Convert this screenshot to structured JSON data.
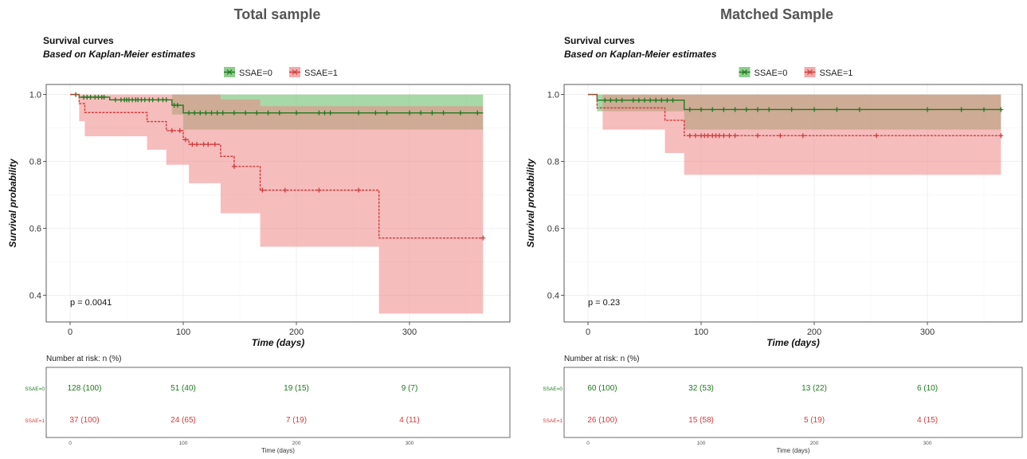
{
  "chart_data": [
    {
      "type": "line",
      "panel_title": "Total sample",
      "title": "Survival curves",
      "subtitle": "Based on Kaplan-Meier estimates",
      "xlabel": "Time (days)",
      "ylabel": "Survival probability",
      "xlim": [
        -18,
        375
      ],
      "ylim": [
        0.32,
        1.03
      ],
      "xticks": [
        0,
        100,
        200,
        300
      ],
      "yticks": [
        0.4,
        0.6,
        0.8,
        1.0
      ],
      "ytick_labels": [
        "0.4",
        "0.6",
        "0.8",
        "1.0"
      ],
      "grid": true,
      "legend": "top-center",
      "pvalue_label": "p = 0.0041",
      "pvalue_pos": [
        0,
        0.38
      ],
      "series": [
        {
          "name": "SSAE=0",
          "color": "#1e7a1e",
          "fill": "#5fb85f",
          "steps": [
            [
              0,
              1.0
            ],
            [
              8,
              0.992
            ],
            [
              35,
              0.984
            ],
            [
              90,
              0.968
            ],
            [
              100,
              0.945
            ],
            [
              365,
              0.945
            ]
          ],
          "ci_steps": [
            [
              0,
              1.0,
              1.0
            ],
            [
              90,
              0.94,
              1.0
            ],
            [
              100,
              0.895,
              1.0
            ],
            [
              365,
              0.895,
              1.0
            ]
          ],
          "censor": [
            5,
            12,
            15,
            18,
            22,
            25,
            28,
            30,
            40,
            45,
            48,
            50,
            52,
            55,
            58,
            60,
            63,
            66,
            70,
            73,
            78,
            82,
            85,
            92,
            95,
            105,
            110,
            115,
            120,
            125,
            130,
            135,
            145,
            155,
            165,
            175,
            185,
            200,
            220,
            225,
            230,
            255,
            270,
            280,
            300,
            310,
            320,
            330,
            345,
            360
          ]
        },
        {
          "name": "SSAE=1",
          "color": "#d13c3c",
          "fill": "#ee8686",
          "steps": [
            [
              0,
              1.0
            ],
            [
              8,
              0.973
            ],
            [
              13,
              0.946
            ],
            [
              68,
              0.919
            ],
            [
              85,
              0.892
            ],
            [
              100,
              0.865
            ],
            [
              105,
              0.851
            ],
            [
              133,
              0.815
            ],
            [
              145,
              0.785
            ],
            [
              168,
              0.714
            ],
            [
              273,
              0.571
            ],
            [
              365,
              0.571
            ]
          ],
          "ci_steps": [
            [
              0,
              1.0,
              1.0
            ],
            [
              8,
              0.92,
              1.0
            ],
            [
              13,
              0.875,
              1.0
            ],
            [
              68,
              0.835,
              1.0
            ],
            [
              85,
              0.79,
              1.0
            ],
            [
              105,
              0.735,
              1.0
            ],
            [
              133,
              0.645,
              0.985
            ],
            [
              168,
              0.545,
              0.965
            ],
            [
              273,
              0.345,
              0.965
            ],
            [
              365,
              0.345,
              0.965
            ]
          ],
          "censor": [
            90,
            97,
            102,
            108,
            112,
            118,
            122,
            128,
            145,
            170,
            190,
            220,
            255,
            365
          ]
        }
      ],
      "risk_table": {
        "title": "Number at risk: n (%)",
        "xlabel": "Time (days)",
        "times": [
          0,
          100,
          200,
          300
        ],
        "rows": [
          {
            "group": "SSAE=0",
            "values": [
              "128 (100)",
              "51 (40)",
              "19 (15)",
              "9 (7)"
            ]
          },
          {
            "group": "SSAE=1",
            "values": [
              "37 (100)",
              "24 (65)",
              "7 (19)",
              "4 (11)"
            ]
          }
        ]
      }
    },
    {
      "type": "line",
      "panel_title": "Matched Sample",
      "title": "Survival curves",
      "subtitle": "Based on Kaplan-Meier estimates",
      "xlabel": "Time (days)",
      "ylabel": "Survival probability",
      "xlim": [
        -18,
        375
      ],
      "ylim": [
        0.32,
        1.03
      ],
      "xticks": [
        0,
        100,
        200,
        300
      ],
      "yticks": [
        0.4,
        0.6,
        0.8,
        1.0
      ],
      "ytick_labels": [
        "0.4",
        "0.6",
        "0.8",
        "1.0"
      ],
      "grid": true,
      "legend": "top-center",
      "pvalue_label": "p = 0.23",
      "pvalue_pos": [
        0,
        0.38
      ],
      "series": [
        {
          "name": "SSAE=0",
          "color": "#1e7a1e",
          "fill": "#5fb85f",
          "steps": [
            [
              0,
              1.0
            ],
            [
              8,
              0.983
            ],
            [
              85,
              0.955
            ],
            [
              365,
              0.955
            ]
          ],
          "ci_steps": [
            [
              0,
              1.0,
              1.0
            ],
            [
              8,
              0.95,
              1.0
            ],
            [
              85,
              0.895,
              1.0
            ],
            [
              365,
              0.895,
              1.0
            ]
          ],
          "censor": [
            15,
            20,
            25,
            30,
            40,
            45,
            50,
            55,
            60,
            65,
            70,
            75,
            90,
            100,
            110,
            120,
            130,
            140,
            150,
            160,
            180,
            200,
            220,
            240,
            300,
            330,
            350,
            365
          ]
        },
        {
          "name": "SSAE=1",
          "color": "#d13c3c",
          "fill": "#ee8686",
          "steps": [
            [
              0,
              1.0
            ],
            [
              8,
              0.96
            ],
            [
              68,
              0.923
            ],
            [
              85,
              0.877
            ],
            [
              365,
              0.877
            ]
          ],
          "ci_steps": [
            [
              0,
              1.0,
              1.0
            ],
            [
              13,
              0.895,
              1.0
            ],
            [
              68,
              0.825,
              1.0
            ],
            [
              85,
              0.76,
              1.0
            ],
            [
              365,
              0.76,
              1.0
            ]
          ],
          "censor": [
            90,
            95,
            100,
            103,
            106,
            110,
            113,
            116,
            120,
            125,
            130,
            150,
            170,
            190,
            255,
            365
          ]
        }
      ],
      "risk_table": {
        "title": "Number at risk: n (%)",
        "xlabel": "Time (days)",
        "times": [
          0,
          100,
          200,
          300
        ],
        "rows": [
          {
            "group": "SSAE=0",
            "values": [
              "60 (100)",
              "32 (53)",
              "13 (22)",
              "6 (10)"
            ]
          },
          {
            "group": "SSAE=1",
            "values": [
              "26 (100)",
              "15 (58)",
              "5 (19)",
              "4 (15)"
            ]
          }
        ]
      }
    }
  ]
}
